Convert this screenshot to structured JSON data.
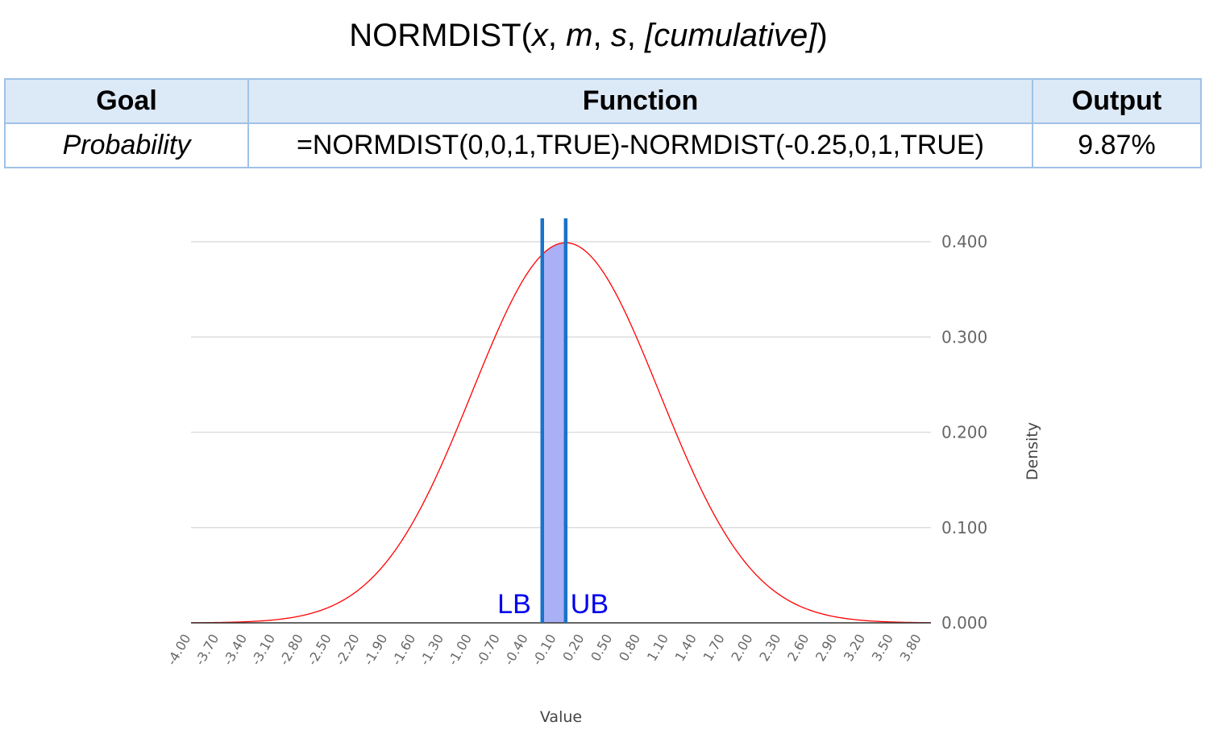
{
  "header": {
    "func": "NORMDIST(",
    "arg_x": "x",
    "sep1": ", ",
    "arg_m": "m",
    "sep2": ", ",
    "arg_s": "s",
    "sep3": ", ",
    "arg_cum": "[cumulative]",
    "close": ")"
  },
  "table": {
    "headers": [
      "Goal",
      "Function",
      "Output"
    ],
    "row": {
      "goal": "Probability",
      "function": "=NORMDIST(0,0,1,TRUE)-NORMDIST(-0.25,0,1,TRUE)",
      "output": "9.87%"
    }
  },
  "chart_data": {
    "type": "area",
    "title": "",
    "xlabel": "Value",
    "ylabel": "Density",
    "xlim": [
      -4.0,
      3.9
    ],
    "ylim": [
      0,
      0.4
    ],
    "x_step": 0.1,
    "x_tick_labels": [
      "-4.00",
      "-3.70",
      "-3.40",
      "-3.10",
      "-2.80",
      "-2.50",
      "-2.20",
      "-1.90",
      "-1.60",
      "-1.30",
      "-1.00",
      "-0.70",
      "-0.40",
      "-0.10",
      "0.20",
      "0.50",
      "0.80",
      "1.10",
      "1.40",
      "1.70",
      "2.00",
      "2.30",
      "2.60",
      "2.90",
      "3.20",
      "3.50",
      "3.80"
    ],
    "y_ticks": [
      0,
      0.1,
      0.2,
      0.3,
      0.4
    ],
    "y_tick_labels": [
      "0.000",
      "0.100",
      "0.200",
      "0.300",
      "0.400"
    ],
    "y_axis_side": "right",
    "grid": true,
    "series": [
      {
        "mean": 0,
        "sd": 1,
        "color": "#ff0000"
      }
    ],
    "shaded_region": {
      "from": -0.25,
      "to": 0,
      "fill": "#aab0f5"
    },
    "bounds": [
      {
        "label": "LB",
        "x": -0.25,
        "color": "#1a73c8"
      },
      {
        "label": "UB",
        "x": 0.0,
        "color": "#1a73c8"
      }
    ],
    "bound_label_color": "#0000ee"
  }
}
